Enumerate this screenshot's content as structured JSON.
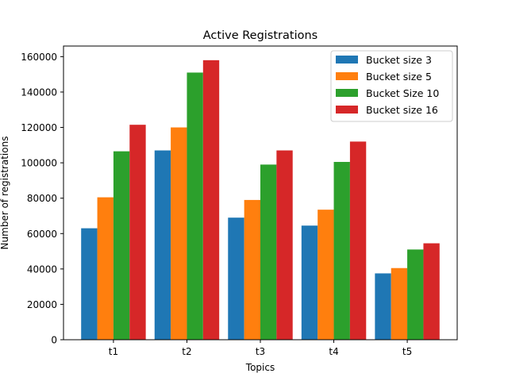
{
  "chart_data": {
    "type": "bar",
    "title": "Active Registrations",
    "xlabel": "Topics",
    "ylabel": "Number of registrations",
    "categories": [
      "t1",
      "t2",
      "t3",
      "t4",
      "t5"
    ],
    "series": [
      {
        "name": "Bucket size 3",
        "color": "#1f77b4",
        "values": [
          63000,
          107000,
          69000,
          64500,
          37500
        ]
      },
      {
        "name": "Bucket size 5",
        "color": "#ff7f0e",
        "values": [
          80500,
          120000,
          79000,
          73500,
          40500
        ]
      },
      {
        "name": "Bucket Size 10",
        "color": "#2ca02c",
        "values": [
          106500,
          151000,
          99000,
          100500,
          51000
        ]
      },
      {
        "name": "Bucket size 16",
        "color": "#d62728",
        "values": [
          121500,
          158000,
          107000,
          112000,
          54500
        ]
      }
    ],
    "ylim": [
      0,
      166000
    ],
    "yticks": [
      0,
      20000,
      40000,
      60000,
      80000,
      100000,
      120000,
      140000,
      160000
    ],
    "ytick_labels": [
      "0",
      "20000",
      "40000",
      "60000",
      "80000",
      "100000",
      "120000",
      "140000",
      "160000"
    ],
    "grid": false,
    "legend_position": "top-right"
  }
}
